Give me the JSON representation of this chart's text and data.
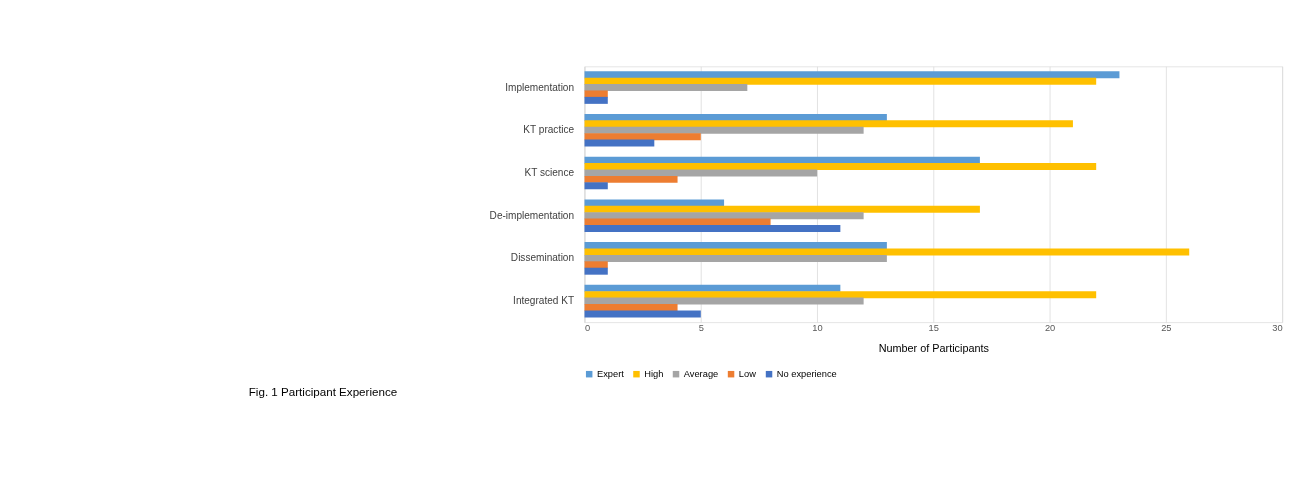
{
  "chart_data": {
    "type": "bar",
    "orientation": "horizontal",
    "title": "Fig. 1 Participant Experience",
    "xlabel": "Number of Participants",
    "categories": [
      "Implementation",
      "KT practice",
      "KT science",
      "De-implementation",
      "Dissemination",
      "Integrated KT"
    ],
    "series": [
      {
        "name": "Expert",
        "color": "#5b9bd5",
        "values": [
          23,
          13,
          17,
          6,
          13,
          11
        ]
      },
      {
        "name": "High",
        "color": "#ffc000",
        "values": [
          22,
          21,
          22,
          17,
          26,
          22
        ]
      },
      {
        "name": "Average",
        "color": "#a5a5a5",
        "values": [
          7,
          12,
          10,
          12,
          13,
          12
        ]
      },
      {
        "name": "Low",
        "color": "#ed7d31",
        "values": [
          1,
          5,
          4,
          8,
          1,
          4
        ]
      },
      {
        "name": "No experience",
        "color": "#4472c4",
        "values": [
          1,
          3,
          1,
          11,
          1,
          5
        ]
      }
    ],
    "xlim": [
      0,
      30
    ],
    "xticks": [
      0,
      5,
      10,
      15,
      20,
      25,
      30
    ],
    "grid": "x",
    "legend": "bottom"
  }
}
